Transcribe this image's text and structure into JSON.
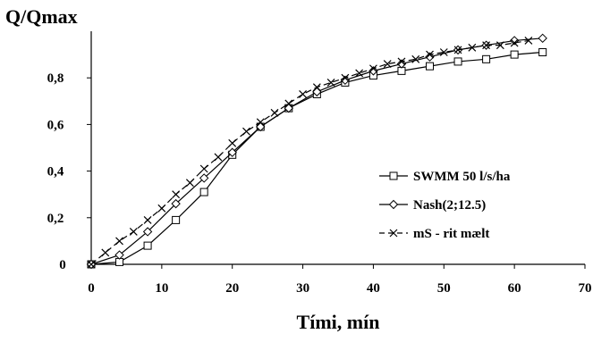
{
  "chart_data": {
    "type": "line",
    "ylabel": "Q/Qmax",
    "xlabel": "Tími, mín",
    "xlim": [
      0,
      70
    ],
    "ylim": [
      0,
      1
    ],
    "x_ticks": [
      "0",
      "10",
      "20",
      "30",
      "40",
      "50",
      "60",
      "70"
    ],
    "y_ticks": [
      "0",
      "0,2",
      "0,4",
      "0,6",
      "0,8"
    ],
    "grid": false,
    "legend_position": "lower-right",
    "series": [
      {
        "name": "SWMM 50 l/s/ha",
        "marker": "square",
        "line_style": "solid",
        "x": [
          0,
          4,
          8,
          12,
          16,
          20,
          24,
          28,
          32,
          36,
          40,
          44,
          48,
          52,
          56,
          60,
          64
        ],
        "y": [
          0,
          0.01,
          0.08,
          0.19,
          0.31,
          0.47,
          0.59,
          0.67,
          0.73,
          0.78,
          0.81,
          0.83,
          0.85,
          0.87,
          0.88,
          0.9,
          0.91
        ]
      },
      {
        "name": "Nash(2;12.5)",
        "marker": "diamond",
        "line_style": "solid",
        "x": [
          0,
          4,
          8,
          12,
          16,
          20,
          24,
          28,
          32,
          36,
          40,
          44,
          48,
          52,
          56,
          60,
          64
        ],
        "y": [
          0,
          0.04,
          0.14,
          0.26,
          0.37,
          0.48,
          0.59,
          0.67,
          0.74,
          0.79,
          0.83,
          0.86,
          0.89,
          0.92,
          0.94,
          0.96,
          0.97
        ]
      },
      {
        "name": "mS - rit mælt",
        "marker": "x",
        "line_style": "dashed",
        "x": [
          0,
          2,
          4,
          6,
          8,
          10,
          12,
          14,
          16,
          18,
          20,
          22,
          24,
          26,
          28,
          30,
          32,
          34,
          36,
          38,
          40,
          42,
          44,
          46,
          48,
          50,
          52,
          54,
          56,
          58,
          60,
          62
        ],
        "y": [
          0,
          0.05,
          0.1,
          0.14,
          0.19,
          0.24,
          0.3,
          0.35,
          0.41,
          0.46,
          0.52,
          0.57,
          0.61,
          0.65,
          0.69,
          0.73,
          0.76,
          0.78,
          0.8,
          0.82,
          0.84,
          0.86,
          0.87,
          0.88,
          0.9,
          0.91,
          0.92,
          0.93,
          0.94,
          0.94,
          0.95,
          0.96
        ]
      }
    ]
  }
}
